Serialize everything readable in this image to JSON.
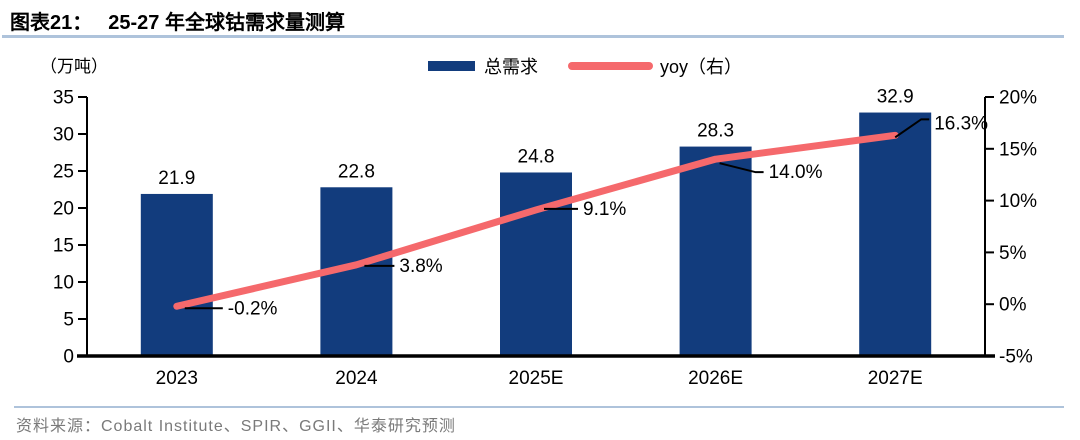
{
  "header": {
    "title_prefix": "图表21：",
    "title": "25-27 年全球钴需求量测算"
  },
  "chart": {
    "unit_label": "（万吨）",
    "legend": [
      {
        "label": "总需求",
        "marker": "bar-swatch"
      },
      {
        "label": "yoy（右）",
        "marker": "line-swatch"
      }
    ]
  },
  "chart_data": {
    "type": "bar",
    "categories": [
      "2023",
      "2024",
      "2025E",
      "2026E",
      "2027E"
    ],
    "series": [
      {
        "name": "总需求",
        "type": "bar",
        "axis": "left",
        "values": [
          21.9,
          22.8,
          24.8,
          28.3,
          32.9
        ],
        "labels": [
          "21.9",
          "22.8",
          "24.8",
          "28.3",
          "32.9"
        ],
        "color": "#123C7D"
      },
      {
        "name": "yoy（右）",
        "type": "line",
        "axis": "right",
        "values": [
          -0.2,
          3.8,
          9.1,
          14.0,
          16.3
        ],
        "labels": [
          "-0.2%",
          "3.8%",
          "9.1%",
          "14.0%",
          "16.3%"
        ],
        "color": "#F5696C"
      }
    ],
    "left_axis": {
      "min": 0,
      "max": 35,
      "step": 5,
      "ticks": [
        "0",
        "5",
        "10",
        "15",
        "20",
        "25",
        "30",
        "35"
      ],
      "label": "（万吨）"
    },
    "right_axis": {
      "min": -5,
      "max": 20,
      "step": 5,
      "ticks": [
        "-5%",
        "0%",
        "5%",
        "10%",
        "15%",
        "20%"
      ]
    },
    "grid": false,
    "legend_position": "top"
  },
  "colors": {
    "bar": "#123C7D",
    "line": "#F5696C",
    "divider": "#AEC3DB",
    "axis": "#000000",
    "source_text": "#7A7A7A"
  },
  "footer": {
    "source": "资料来源：Cobalt Institute、SPIR、GGII、华泰研究预测"
  }
}
